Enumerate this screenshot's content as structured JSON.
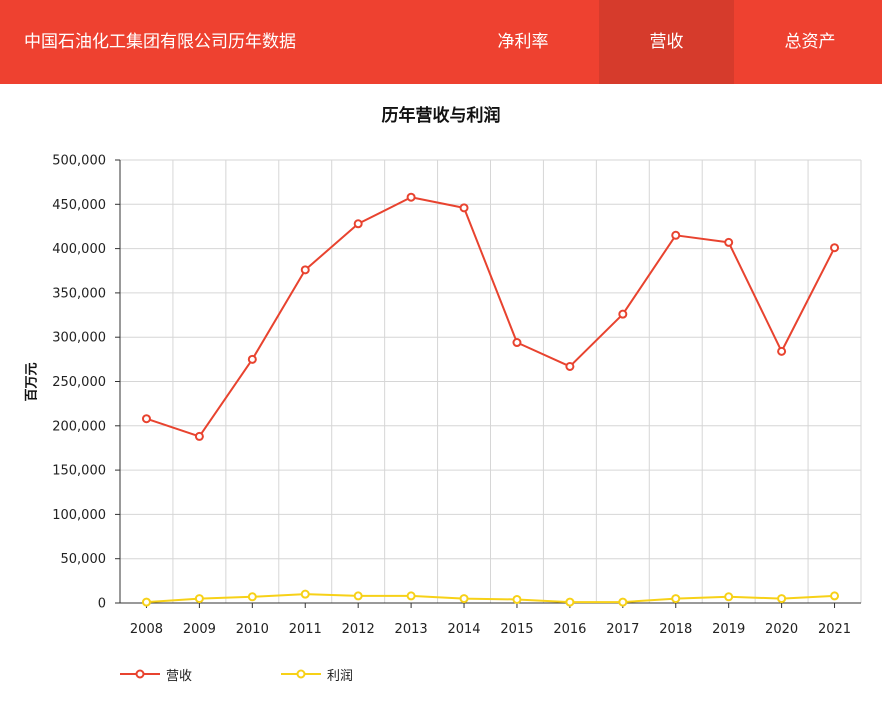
{
  "header": {
    "title": "中国石油化工集团有限公司历年数据",
    "tabs": [
      {
        "label": "净利率",
        "active": false
      },
      {
        "label": "营收",
        "active": true
      },
      {
        "label": "总资产",
        "active": false
      }
    ],
    "background": "#ee4130",
    "active_tab_background": "#d63b2c"
  },
  "chart_data": {
    "type": "line",
    "title": "历年营收与利润",
    "xlabel": "",
    "ylabel": "百万元",
    "categories": [
      "2008",
      "2009",
      "2010",
      "2011",
      "2012",
      "2013",
      "2014",
      "2015",
      "2016",
      "2017",
      "2018",
      "2019",
      "2020",
      "2021"
    ],
    "ylim": [
      0,
      500000
    ],
    "yticks": [
      0,
      50000,
      100000,
      150000,
      200000,
      250000,
      300000,
      350000,
      400000,
      450000,
      500000
    ],
    "ytick_labels": [
      "0",
      "50,000",
      "100,000",
      "150,000",
      "200,000",
      "250,000",
      "300,000",
      "350,000",
      "400,000",
      "450,000",
      "500,000"
    ],
    "grid": true,
    "legend_position": "bottom-left",
    "series": [
      {
        "name": "营收",
        "color": "#e8432f",
        "values": [
          208000,
          188000,
          275000,
          376000,
          428000,
          458000,
          446000,
          294000,
          267000,
          326000,
          415000,
          407000,
          284000,
          401000
        ]
      },
      {
        "name": "利润",
        "color": "#f7d117",
        "values": [
          1000,
          5000,
          7000,
          10000,
          8000,
          8000,
          5000,
          4000,
          1000,
          1000,
          5000,
          7000,
          5000,
          8000
        ]
      }
    ]
  }
}
